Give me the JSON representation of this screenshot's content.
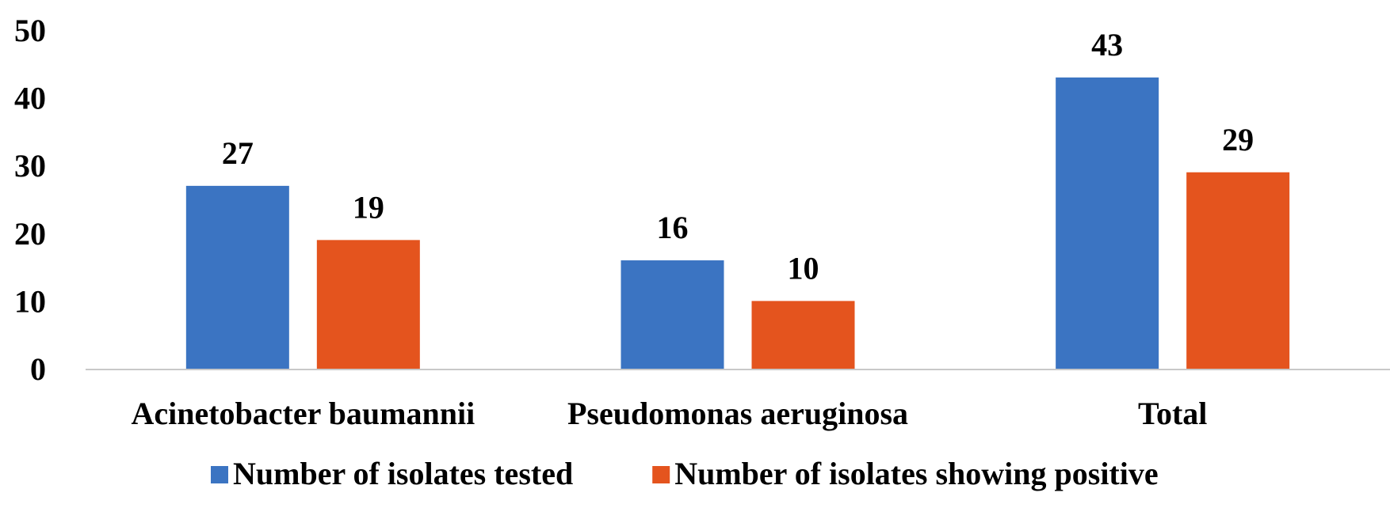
{
  "chart_data": {
    "type": "bar",
    "title": "",
    "xlabel": "",
    "ylabel": "",
    "ylim": [
      0,
      50
    ],
    "yticks": [
      0,
      10,
      20,
      30,
      40,
      50
    ],
    "grid": false,
    "legend_position": "bottom",
    "categories": [
      "Acinetobacter baumannii",
      "Pseudomonas aeruginosa",
      "Total"
    ],
    "series": [
      {
        "name": "Number of isolates tested",
        "values": [
          27,
          16,
          43
        ],
        "color": "#3B74C2"
      },
      {
        "name": "Number of isolates showing positive",
        "values": [
          19,
          10,
          29
        ],
        "color": "#E4541E"
      }
    ],
    "axis_color": "#C8C8C8"
  }
}
